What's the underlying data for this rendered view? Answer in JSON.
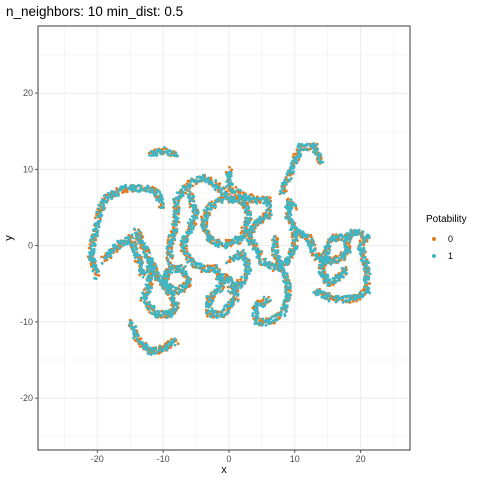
{
  "chart_data": {
    "type": "scatter",
    "title": "n_neighbors: 10 min_dist: 0.5",
    "xlabel": "x",
    "ylabel": "y",
    "xlim": [
      -29,
      27.5
    ],
    "ylim": [
      -26.8,
      28.8
    ],
    "xticks": [
      -20,
      -10,
      0,
      10,
      20
    ],
    "yticks": [
      -20,
      -10,
      0,
      10,
      20
    ],
    "xtick_labels": [
      "-20",
      "-10",
      "0",
      "10",
      "20"
    ],
    "ytick_labels": [
      "-20",
      "-10",
      "0",
      "10",
      "20"
    ],
    "grid": true,
    "legend": {
      "title": "Potability",
      "placement": "right",
      "entries": [
        {
          "label": "0",
          "color": "#E07B24"
        },
        {
          "label": "1",
          "color": "#3FB6C6"
        }
      ]
    },
    "series": [
      {
        "name": "0",
        "color": "#E07B24",
        "curves": [
          [
            [
              -12,
              12
            ],
            [
              -10,
              12.5
            ],
            [
              -8,
              12
            ]
          ],
          [
            [
              -20,
              -4
            ],
            [
              -21,
              -1
            ],
            [
              -20,
              3
            ],
            [
              -19,
              6
            ],
            [
              -16,
              7.5
            ],
            [
              -13,
              7.5
            ],
            [
              -11,
              7
            ],
            [
              -10,
              5
            ]
          ],
          [
            [
              -19,
              -2
            ],
            [
              -17,
              0
            ],
            [
              -15,
              1
            ],
            [
              -14,
              -1
            ],
            [
              -13,
              -4
            ]
          ],
          [
            [
              -15,
              -10
            ],
            [
              -14,
              -12
            ],
            [
              -12,
              -14
            ],
            [
              -10,
              -13.5
            ],
            [
              -8,
              -12.5
            ]
          ],
          [
            [
              -14,
              2
            ],
            [
              -13,
              0
            ],
            [
              -12,
              -2
            ],
            [
              -12,
              -5
            ],
            [
              -13,
              -7
            ],
            [
              -11,
              -9
            ],
            [
              -9,
              -9
            ],
            [
              -8,
              -8
            ],
            [
              -9,
              -6
            ],
            [
              -11,
              -4
            ],
            [
              -12,
              -2
            ]
          ],
          [
            [
              -10,
              -5
            ],
            [
              -8,
              -6
            ],
            [
              -6,
              -5
            ],
            [
              -7,
              -3
            ],
            [
              -9,
              -3
            ],
            [
              -10,
              -5
            ]
          ],
          [
            [
              -9,
              -2
            ],
            [
              -9,
              0
            ],
            [
              -8,
              3
            ],
            [
              -8,
              6
            ],
            [
              -6,
              8
            ],
            [
              -4,
              9
            ],
            [
              -2,
              8
            ],
            [
              0,
              6
            ],
            [
              2,
              6
            ],
            [
              3,
              4
            ],
            [
              2,
              1
            ],
            [
              -1,
              0
            ],
            [
              -3,
              1
            ],
            [
              -4,
              3
            ],
            [
              -3,
              5
            ],
            [
              -1,
              6
            ]
          ],
          [
            [
              -6,
              7
            ],
            [
              -5,
              4
            ],
            [
              -6,
              2
            ],
            [
              -7,
              0
            ],
            [
              -6,
              -2
            ],
            [
              -4,
              -3
            ],
            [
              -2,
              -3
            ],
            [
              -1,
              -5
            ],
            [
              -3,
              -7
            ],
            [
              -3,
              -9
            ],
            [
              -1,
              -9
            ],
            [
              1,
              -7
            ],
            [
              1,
              -5
            ],
            [
              -1,
              -4
            ]
          ],
          [
            [
              0,
              10
            ],
            [
              0,
              8
            ],
            [
              1,
              7
            ],
            [
              4,
              6
            ],
            [
              6,
              6
            ],
            [
              6,
              4
            ],
            [
              4,
              3
            ],
            [
              3,
              1
            ],
            [
              4,
              0
            ],
            [
              5,
              -2
            ],
            [
              7,
              -3
            ],
            [
              9,
              -2
            ],
            [
              10,
              0
            ],
            [
              10,
              2
            ],
            [
              9,
              4
            ],
            [
              9,
              6
            ],
            [
              10,
              5
            ]
          ],
          [
            [
              7,
              1
            ],
            [
              7,
              -1
            ],
            [
              8,
              -3
            ],
            [
              9,
              -5
            ],
            [
              9,
              -7
            ],
            [
              8,
              -9
            ],
            [
              6,
              -10
            ],
            [
              4,
              -10
            ],
            [
              4,
              -8
            ],
            [
              6,
              -7
            ]
          ],
          [
            [
              8,
              7
            ],
            [
              9,
              9
            ],
            [
              10,
              11
            ],
            [
              11,
              13
            ],
            [
              13,
              13
            ],
            [
              14,
              11
            ]
          ],
          [
            [
              10,
              2
            ],
            [
              12,
              1
            ],
            [
              13,
              -1
            ],
            [
              14,
              -2
            ],
            [
              16,
              -2
            ],
            [
              18,
              -1
            ],
            [
              18,
              1
            ],
            [
              16,
              1
            ],
            [
              15,
              0
            ],
            [
              14,
              -3
            ],
            [
              15,
              -5
            ],
            [
              17,
              -4
            ],
            [
              18,
              -3
            ]
          ],
          [
            [
              13,
              -6
            ],
            [
              16,
              -7
            ],
            [
              19,
              -7
            ],
            [
              21,
              -6
            ],
            [
              21,
              -3
            ],
            [
              20,
              0
            ],
            [
              21,
              1
            ],
            [
              19,
              2
            ],
            [
              18,
              1
            ]
          ],
          [
            [
              0,
              -2
            ],
            [
              2,
              -1
            ],
            [
              3,
              -3
            ],
            [
              2,
              -5
            ],
            [
              0,
              -6
            ]
          ]
        ]
      },
      {
        "name": "1",
        "color": "#3FB6C6",
        "curves": [
          [
            [
              -12,
              12
            ],
            [
              -10,
              12.5
            ],
            [
              -8,
              12
            ]
          ],
          [
            [
              -20,
              -4
            ],
            [
              -21,
              -1
            ],
            [
              -20,
              3
            ],
            [
              -19,
              6
            ],
            [
              -16,
              7.5
            ],
            [
              -13,
              7.5
            ],
            [
              -11,
              7
            ],
            [
              -10,
              5
            ]
          ],
          [
            [
              -19,
              -2
            ],
            [
              -17,
              0
            ],
            [
              -15,
              1
            ],
            [
              -14,
              -1
            ],
            [
              -13,
              -4
            ]
          ],
          [
            [
              -15,
              -10
            ],
            [
              -14,
              -12
            ],
            [
              -12,
              -14
            ],
            [
              -10,
              -13.5
            ],
            [
              -8,
              -12.5
            ]
          ],
          [
            [
              -14,
              2
            ],
            [
              -13,
              0
            ],
            [
              -12,
              -2
            ],
            [
              -12,
              -5
            ],
            [
              -13,
              -7
            ],
            [
              -11,
              -9
            ],
            [
              -9,
              -9
            ],
            [
              -8,
              -8
            ],
            [
              -9,
              -6
            ],
            [
              -11,
              -4
            ],
            [
              -12,
              -2
            ]
          ],
          [
            [
              -10,
              -5
            ],
            [
              -8,
              -6
            ],
            [
              -6,
              -5
            ],
            [
              -7,
              -3
            ],
            [
              -9,
              -3
            ],
            [
              -10,
              -5
            ]
          ],
          [
            [
              -9,
              -2
            ],
            [
              -9,
              0
            ],
            [
              -8,
              3
            ],
            [
              -8,
              6
            ],
            [
              -6,
              8
            ],
            [
              -4,
              9
            ],
            [
              -2,
              8
            ],
            [
              0,
              6
            ],
            [
              2,
              6
            ],
            [
              3,
              4
            ],
            [
              2,
              1
            ],
            [
              -1,
              0
            ],
            [
              -3,
              1
            ],
            [
              -4,
              3
            ],
            [
              -3,
              5
            ],
            [
              -1,
              6
            ]
          ],
          [
            [
              -6,
              7
            ],
            [
              -5,
              4
            ],
            [
              -6,
              2
            ],
            [
              -7,
              0
            ],
            [
              -6,
              -2
            ],
            [
              -4,
              -3
            ],
            [
              -2,
              -3
            ],
            [
              -1,
              -5
            ],
            [
              -3,
              -7
            ],
            [
              -3,
              -9
            ],
            [
              -1,
              -9
            ],
            [
              1,
              -7
            ],
            [
              1,
              -5
            ],
            [
              -1,
              -4
            ]
          ],
          [
            [
              0,
              10
            ],
            [
              0,
              8
            ],
            [
              1,
              7
            ],
            [
              4,
              6
            ],
            [
              6,
              6
            ],
            [
              6,
              4
            ],
            [
              4,
              3
            ],
            [
              3,
              1
            ],
            [
              4,
              0
            ],
            [
              5,
              -2
            ],
            [
              7,
              -3
            ],
            [
              9,
              -2
            ],
            [
              10,
              0
            ],
            [
              10,
              2
            ],
            [
              9,
              4
            ],
            [
              9,
              6
            ],
            [
              10,
              5
            ]
          ],
          [
            [
              7,
              1
            ],
            [
              7,
              -1
            ],
            [
              8,
              -3
            ],
            [
              9,
              -5
            ],
            [
              9,
              -7
            ],
            [
              8,
              -9
            ],
            [
              6,
              -10
            ],
            [
              4,
              -10
            ],
            [
              4,
              -8
            ],
            [
              6,
              -7
            ]
          ],
          [
            [
              8,
              7
            ],
            [
              9,
              9
            ],
            [
              10,
              11
            ],
            [
              11,
              13
            ],
            [
              13,
              13
            ],
            [
              14,
              11
            ]
          ],
          [
            [
              10,
              2
            ],
            [
              12,
              1
            ],
            [
              13,
              -1
            ],
            [
              14,
              -2
            ],
            [
              16,
              -2
            ],
            [
              18,
              -1
            ],
            [
              18,
              1
            ],
            [
              16,
              1
            ],
            [
              15,
              0
            ],
            [
              14,
              -3
            ],
            [
              15,
              -5
            ],
            [
              17,
              -4
            ],
            [
              18,
              -3
            ]
          ],
          [
            [
              13,
              -6
            ],
            [
              16,
              -7
            ],
            [
              19,
              -7
            ],
            [
              21,
              -6
            ],
            [
              21,
              -3
            ],
            [
              20,
              0
            ],
            [
              21,
              1
            ],
            [
              19,
              2
            ],
            [
              18,
              1
            ]
          ],
          [
            [
              0,
              -2
            ],
            [
              2,
              -1
            ],
            [
              3,
              -3
            ],
            [
              2,
              -5
            ],
            [
              0,
              -6
            ]
          ]
        ]
      }
    ]
  }
}
